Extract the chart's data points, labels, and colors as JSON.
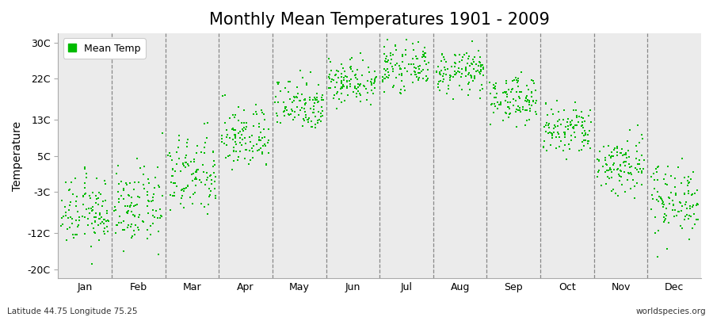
{
  "title": "Monthly Mean Temperatures 1901 - 2009",
  "ylabel": "Temperature",
  "footer_left": "Latitude 44.75 Longitude 75.25",
  "footer_right": "worldspecies.org",
  "yticks": [
    -20,
    -12,
    -3,
    5,
    13,
    22,
    30
  ],
  "ytick_labels": [
    "-20C",
    "-12C",
    "-3C",
    "5C",
    "13C",
    "22C",
    "30C"
  ],
  "ylim": [
    -22,
    32
  ],
  "xlim": [
    0,
    12
  ],
  "months": [
    "Jan",
    "Feb",
    "Mar",
    "Apr",
    "May",
    "Jun",
    "Jul",
    "Aug",
    "Sep",
    "Oct",
    "Nov",
    "Dec"
  ],
  "monthly_means": [
    -7.5,
    -6.5,
    0.5,
    9.0,
    16.5,
    21.5,
    24.5,
    23.5,
    17.5,
    10.5,
    3.0,
    -4.5
  ],
  "monthly_stds": [
    3.8,
    4.2,
    4.5,
    3.5,
    3.0,
    2.5,
    2.3,
    2.3,
    2.5,
    3.0,
    3.5,
    4.0
  ],
  "n_years": 109,
  "dot_color": "#00bb00",
  "dot_size": 3,
  "bg_color": "#ebebeb",
  "legend_label": "Mean Temp",
  "title_fontsize": 15,
  "label_fontsize": 10,
  "tick_fontsize": 9
}
